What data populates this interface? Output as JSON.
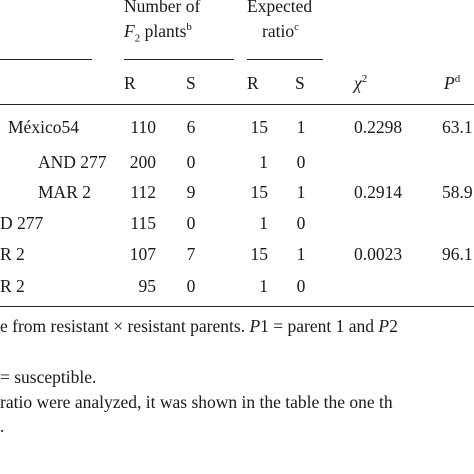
{
  "headers": {
    "number_of": "Number of",
    "f2_italic": "F",
    "f2_sub": "2",
    "plants": " plants",
    "plants_sup": "b",
    "expected": "Expected",
    "ratio": "ratio",
    "ratio_sup": "c",
    "R1": "R",
    "S1": "S",
    "R2": "R",
    "S2": "S",
    "chi": "χ",
    "chi_sup": "2",
    "p": "P",
    "p_sup": "d"
  },
  "rows": [
    {
      "cross": "México54",
      "R": "110",
      "S": "6",
      "eR": "15",
      "eS": "1",
      "chi2": "0.2298",
      "p": "63.1"
    },
    {
      "cross": "AND 277",
      "R": "200",
      "S": "0",
      "eR": "1",
      "eS": "0",
      "chi2": "",
      "p": ""
    },
    {
      "cross": "MAR 2",
      "R": "112",
      "S": "9",
      "eR": "15",
      "eS": "1",
      "chi2": "0.2914",
      "p": "58.9"
    },
    {
      "cross": "D 277",
      "R": "115",
      "S": "0",
      "eR": "1",
      "eS": "0",
      "chi2": "",
      "p": ""
    },
    {
      "cross": "R 2",
      "R": "107",
      "S": "7",
      "eR": "15",
      "eS": "1",
      "chi2": "0.0023",
      "p": "96.1"
    },
    {
      "cross": "R 2",
      "R": "95",
      "S": "0",
      "eR": "1",
      "eS": "0",
      "chi2": "",
      "p": ""
    }
  ],
  "footnotes": {
    "line1": "e from resistant × resistant parents. ",
    "line1_p1": "P",
    "line1_mid": "1 = parent 1 and ",
    "line1_p2": "P",
    "line1_end": "2",
    "line2": "= susceptible.",
    "line3": "ratio were analyzed, it was shown in the table the one th",
    "line4": "."
  }
}
